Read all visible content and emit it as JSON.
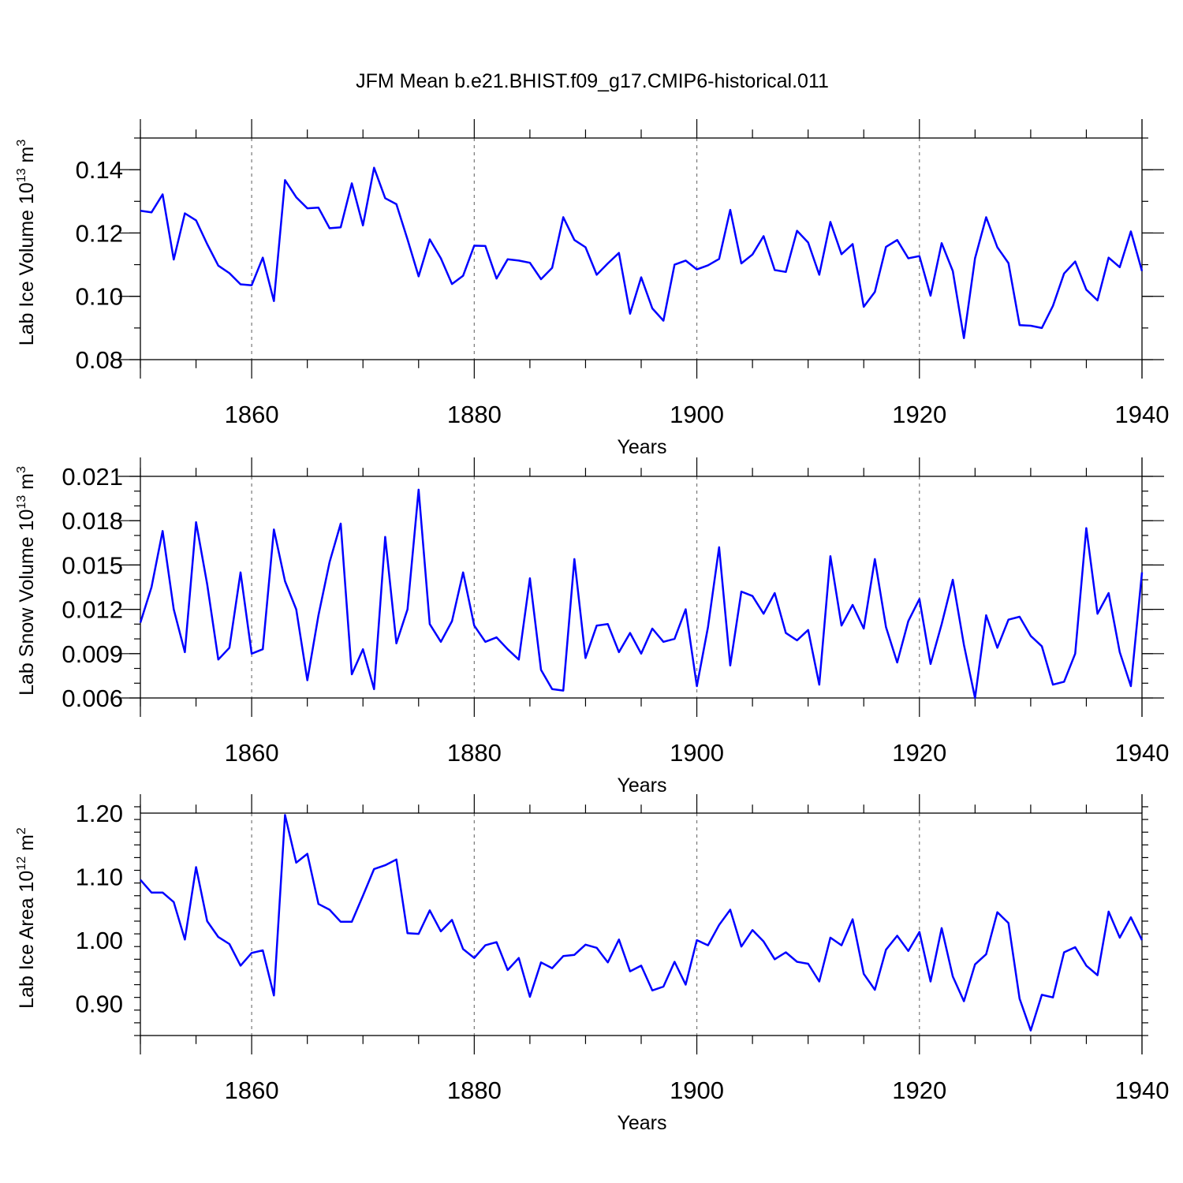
{
  "figure_title": "JFM Mean b.e21.BHIST.f09_g17.CMIP6-historical.011",
  "colors": {
    "line": "#0000ff",
    "axis": "#000000",
    "grid": "#777777"
  },
  "chart_data": [
    {
      "type": "line",
      "ylabel": {
        "main": "Lab Ice Volume 10",
        "exp": "13",
        "unit": " m",
        "unit_exp": "3"
      },
      "xlabel": "Years",
      "xlim": [
        1850,
        1940
      ],
      "ylim": [
        0.08,
        0.15
      ],
      "xticks": [
        1860,
        1880,
        1900,
        1920,
        1940
      ],
      "xtick_labels": [
        "1860",
        "1880",
        "1900",
        "1920",
        "1940"
      ],
      "yticks": [
        0.08,
        0.1,
        0.12,
        0.14
      ],
      "ytick_labels": [
        "0.08",
        "0.10",
        "0.12",
        "0.14"
      ],
      "minor_xstep": 5,
      "minor_ystep": 0.01,
      "grid": "vertical dashed at major x ticks",
      "series": [
        {
          "name": "Lab Ice Volume",
          "x_start": 1850,
          "values": [
            0.127,
            0.1265,
            0.1322,
            0.1116,
            0.1262,
            0.124,
            0.1165,
            0.1097,
            0.1073,
            0.1038,
            0.1035,
            0.1122,
            0.0985,
            0.1367,
            0.1313,
            0.1278,
            0.128,
            0.1215,
            0.1218,
            0.1357,
            0.1224,
            0.1406,
            0.131,
            0.1291,
            0.118,
            0.1063,
            0.118,
            0.112,
            0.1039,
            0.1065,
            0.116,
            0.1159,
            0.1056,
            0.1117,
            0.1113,
            0.1106,
            0.1054,
            0.109,
            0.125,
            0.1178,
            0.1155,
            0.1068,
            0.1104,
            0.1137,
            0.0945,
            0.106,
            0.0962,
            0.0923,
            0.11,
            0.1113,
            0.1085,
            0.1098,
            0.1118,
            0.1273,
            0.1104,
            0.1132,
            0.119,
            0.1083,
            0.1077,
            0.1207,
            0.117,
            0.1068,
            0.1235,
            0.1133,
            0.1165,
            0.0967,
            0.1014,
            0.1156,
            0.1178,
            0.112,
            0.1127,
            0.1002,
            0.1168,
            0.108,
            0.0868,
            0.112,
            0.125,
            0.1155,
            0.1105,
            0.0909,
            0.0907,
            0.09,
            0.097,
            0.1072,
            0.111,
            0.1021,
            0.0987,
            0.1122,
            0.1092,
            0.1205,
            0.108
          ]
        }
      ]
    },
    {
      "type": "line",
      "ylabel": {
        "main": "Lab Snow Volume 10",
        "exp": "13",
        "unit": " m",
        "unit_exp": "3"
      },
      "xlabel": "Years",
      "xlim": [
        1850,
        1940
      ],
      "ylim": [
        0.006,
        0.021
      ],
      "xticks": [
        1860,
        1880,
        1900,
        1920,
        1940
      ],
      "xtick_labels": [
        "1860",
        "1880",
        "1900",
        "1920",
        "1940"
      ],
      "yticks": [
        0.006,
        0.009,
        0.012,
        0.015,
        0.018,
        0.021
      ],
      "ytick_labels": [
        "0.006",
        "0.009",
        "0.012",
        "0.015",
        "0.018",
        "0.021"
      ],
      "minor_xstep": 5,
      "minor_ystep": 0.001,
      "grid": "vertical dashed at major x ticks",
      "series": [
        {
          "name": "Lab Snow Volume",
          "x_start": 1850,
          "values": [
            0.0111,
            0.0135,
            0.0173,
            0.012,
            0.0091,
            0.0179,
            0.0137,
            0.0086,
            0.0094,
            0.0145,
            0.009,
            0.0093,
            0.0174,
            0.0139,
            0.012,
            0.0072,
            0.0116,
            0.0152,
            0.0178,
            0.0076,
            0.0093,
            0.0066,
            0.0169,
            0.0097,
            0.012,
            0.0201,
            0.011,
            0.0098,
            0.0112,
            0.0145,
            0.0109,
            0.0098,
            0.0101,
            0.0093,
            0.0086,
            0.0141,
            0.0079,
            0.0066,
            0.0065,
            0.0154,
            0.0087,
            0.0109,
            0.011,
            0.0091,
            0.0104,
            0.009,
            0.0107,
            0.0098,
            0.01,
            0.012,
            0.0068,
            0.0108,
            0.0162,
            0.0082,
            0.0132,
            0.0129,
            0.0117,
            0.0131,
            0.0104,
            0.0099,
            0.0106,
            0.0069,
            0.0156,
            0.0109,
            0.0123,
            0.0107,
            0.0154,
            0.0108,
            0.0084,
            0.0112,
            0.0127,
            0.0083,
            0.011,
            0.014,
            0.0096,
            0.006,
            0.0116,
            0.0094,
            0.0113,
            0.0115,
            0.0102,
            0.0095,
            0.0069,
            0.0071,
            0.009,
            0.0175,
            0.0117,
            0.0131,
            0.0091,
            0.0068,
            0.0145
          ]
        }
      ]
    },
    {
      "type": "line",
      "ylabel": {
        "main": "Lab Ice Area 10",
        "exp": "12",
        "unit": " m",
        "unit_exp": "2"
      },
      "xlabel": "Years",
      "xlim": [
        1850,
        1940
      ],
      "ylim": [
        0.85,
        1.2
      ],
      "xticks": [
        1860,
        1880,
        1900,
        1920,
        1940
      ],
      "xtick_labels": [
        "1860",
        "1880",
        "1900",
        "1920",
        "1940"
      ],
      "yticks": [
        0.9,
        1.0,
        1.1,
        1.2
      ],
      "ytick_labels": [
        "0.90",
        "1.00",
        "1.10",
        "1.20"
      ],
      "minor_xstep": 5,
      "minor_ystep": 0.02,
      "grid": "vertical dashed at major x ticks",
      "series": [
        {
          "name": "Lab Ice Area",
          "x_start": 1850,
          "values": [
            1.095,
            1.075,
            1.075,
            1.06,
            1.001,
            1.115,
            1.03,
            1.005,
            0.994,
            0.96,
            0.98,
            0.984,
            0.913,
            1.197,
            1.122,
            1.136,
            1.057,
            1.048,
            1.029,
            1.029,
            1.07,
            1.112,
            1.118,
            1.127,
            1.011,
            1.01,
            1.047,
            1.014,
            1.032,
            0.986,
            0.972,
            0.992,
            0.997,
            0.953,
            0.972,
            0.911,
            0.965,
            0.956,
            0.975,
            0.977,
            0.993,
            0.988,
            0.965,
            1.001,
            0.951,
            0.96,
            0.921,
            0.927,
            0.966,
            0.93,
            1.0,
            0.992,
            1.024,
            1.048,
            0.99,
            1.016,
            0.998,
            0.97,
            0.981,
            0.966,
            0.963,
            0.935,
            1.004,
            0.992,
            1.033,
            0.947,
            0.922,
            0.985,
            1.007,
            0.983,
            1.013,
            0.935,
            1.019,
            0.943,
            0.904,
            0.962,
            0.978,
            1.044,
            1.027,
            0.908,
            0.858,
            0.914,
            0.91,
            0.981,
            0.989,
            0.96,
            0.945,
            1.045,
            1.004,
            1.036,
            1.0
          ]
        }
      ]
    }
  ]
}
